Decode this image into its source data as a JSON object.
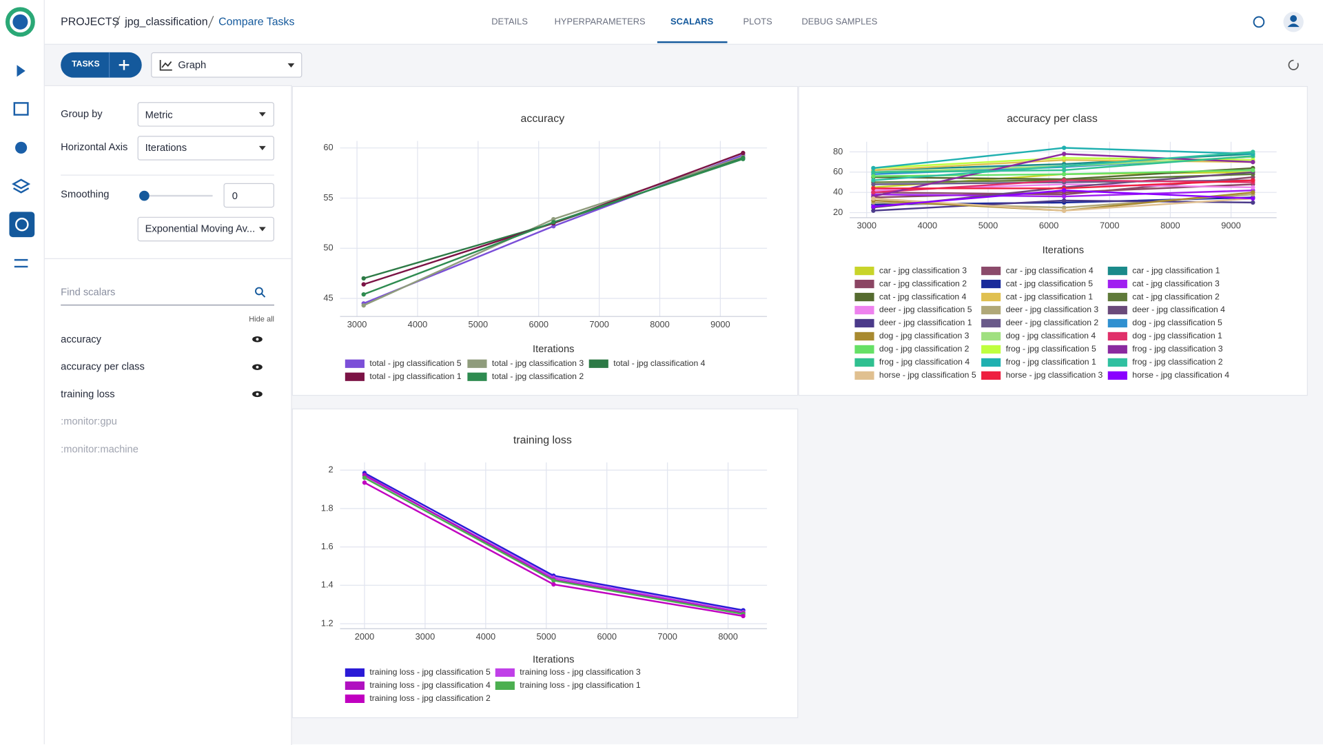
{
  "header": {
    "breadcrumb": [
      "PROJECTS",
      "jpg_classification",
      "Compare Tasks"
    ],
    "tabs": [
      "DETAILS",
      "HYPERPARAMETERS",
      "SCALARS",
      "PLOTS",
      "DEBUG SAMPLES"
    ]
  },
  "toolbar": {
    "tasks_button": "TASKS",
    "view_select": "Graph"
  },
  "sidebar": {
    "group_by": {
      "label": "Group by",
      "value": "Metric"
    },
    "horizontal_axis": {
      "label": "Horizontal Axis",
      "value": "Iterations"
    },
    "smoothing": {
      "label": "Smoothing",
      "value": 0,
      "method": "Exponential Moving Av..."
    },
    "search_placeholder": "Find scalars",
    "hide_all": "Hide all",
    "scalars": [
      "accuracy",
      "accuracy per class",
      "training loss",
      ":monitor:gpu",
      ":monitor:machine"
    ]
  },
  "charts": [
    {
      "type": "line",
      "title": "accuracy",
      "x_label": "Iterations",
      "grid": true,
      "x": [
        3110,
        6245,
        9375
      ],
      "xlim": [
        2720,
        9770
      ],
      "xticks": [
        3000,
        4000,
        5000,
        6000,
        7000,
        8000,
        9000
      ],
      "ylim": [
        43.2,
        60.7
      ],
      "yticks": [
        45,
        50,
        55,
        60
      ],
      "series": [
        {
          "name": "total - jpg classification 5",
          "color": "#7b4fd8",
          "values": [
            44.5,
            52.2,
            59.3
          ]
        },
        {
          "name": "total - jpg classification 3",
          "color": "#8f9c7c",
          "values": [
            44.3,
            52.9,
            59.1
          ]
        },
        {
          "name": "total - jpg classification 4",
          "color": "#2d7a46",
          "values": [
            47.0,
            52.5,
            59.0
          ]
        },
        {
          "name": "total - jpg classification 1",
          "color": "#7b1345",
          "values": [
            46.4,
            52.5,
            59.5
          ]
        },
        {
          "name": "total - jpg classification 2",
          "color": "#2e8b50",
          "values": [
            45.4,
            52.6,
            58.9
          ]
        }
      ]
    },
    {
      "type": "line",
      "title": "accuracy per class",
      "x_label": "Iterations",
      "grid": true,
      "x": [
        3110,
        6250,
        9360
      ],
      "xlim": [
        2720,
        9750
      ],
      "xticks": [
        3000,
        4000,
        5000,
        6000,
        7000,
        8000,
        9000
      ],
      "ylim": [
        15,
        90
      ],
      "yticks": [
        20,
        40,
        60,
        80
      ],
      "series": [
        {
          "name": "car - jpg classification 3",
          "color": "#c8d42a",
          "values": [
            45,
            58,
            60
          ]
        },
        {
          "name": "car - jpg classification 4",
          "color": "#8b4a6a",
          "values": [
            40,
            38,
            55
          ]
        },
        {
          "name": "car - jpg classification 1",
          "color": "#1a8a8a",
          "values": [
            62,
            68,
            78
          ]
        },
        {
          "name": "car - jpg classification 2",
          "color": "#8b4563",
          "values": [
            35,
            40,
            48
          ]
        },
        {
          "name": "cat - jpg classification 5",
          "color": "#1a2a9a",
          "values": [
            28,
            30,
            35
          ]
        },
        {
          "name": "cat - jpg classification 3",
          "color": "#a020f0",
          "values": [
            38,
            36,
            42
          ]
        },
        {
          "name": "cat - jpg classification 4",
          "color": "#556b2f",
          "values": [
            55,
            53,
            64
          ]
        },
        {
          "name": "cat - jpg classification 1",
          "color": "#e0c050",
          "values": [
            62,
            72,
            70
          ]
        },
        {
          "name": "cat - jpg classification 2",
          "color": "#5f7a3a",
          "values": [
            50,
            52,
            58
          ]
        },
        {
          "name": "deer - jpg classification 5",
          "color": "#ee82ee",
          "values": [
            42,
            48,
            45
          ]
        },
        {
          "name": "deer - jpg classification 3",
          "color": "#b0a878",
          "values": [
            30,
            25,
            38
          ]
        },
        {
          "name": "deer - jpg classification 4",
          "color": "#6a4a7a",
          "values": [
            25,
            45,
            60
          ]
        },
        {
          "name": "deer - jpg classification 1",
          "color": "#4b3a8a",
          "values": [
            22,
            32,
            30
          ]
        },
        {
          "name": "deer - jpg classification 2",
          "color": "#6a5a8a",
          "values": [
            48,
            50,
            52
          ]
        },
        {
          "name": "dog - jpg classification 5",
          "color": "#3090d0",
          "values": [
            58,
            65,
            75
          ]
        },
        {
          "name": "dog - jpg classification 3",
          "color": "#a88a30",
          "values": [
            32,
            22,
            40
          ]
        },
        {
          "name": "dog - jpg classification 4",
          "color": "#a0e080",
          "values": [
            60,
            66,
            75
          ]
        },
        {
          "name": "dog - jpg classification 1",
          "color": "#e0306a",
          "values": [
            40,
            52,
            50
          ]
        },
        {
          "name": "dog - jpg classification 2",
          "color": "#66e066",
          "values": [
            56,
            58,
            62
          ]
        },
        {
          "name": "frog - jpg classification 5",
          "color": "#bfff3f",
          "values": [
            64,
            74,
            72
          ]
        },
        {
          "name": "frog - jpg classification 3",
          "color": "#8a2aa0",
          "values": [
            36,
            78,
            70
          ]
        },
        {
          "name": "frog - jpg classification 4",
          "color": "#30c090",
          "values": [
            60,
            62,
            76
          ]
        },
        {
          "name": "frog - jpg classification 1",
          "color": "#20b0b0",
          "values": [
            64,
            84,
            78
          ]
        },
        {
          "name": "frog - jpg classification 2",
          "color": "#30c0a0",
          "values": [
            52,
            66,
            80
          ]
        },
        {
          "name": "horse - jpg classification 5",
          "color": "#e0c090",
          "values": [
            34,
            22,
            34
          ]
        },
        {
          "name": "horse - jpg classification 3",
          "color": "#ee2040",
          "values": [
            44,
            44,
            52
          ]
        },
        {
          "name": "horse - jpg classification 4",
          "color": "#8a00ff",
          "values": [
            26,
            42,
            34
          ]
        }
      ]
    },
    {
      "type": "line",
      "title": "training loss",
      "x_label": "Iterations",
      "grid": true,
      "x": [
        2000,
        5120,
        8250
      ],
      "xlim": [
        1596,
        8642
      ],
      "xticks": [
        2000,
        3000,
        4000,
        5000,
        6000,
        7000,
        8000
      ],
      "ylim": [
        1.174,
        2.04
      ],
      "yticks": [
        1.2,
        1.4,
        1.6,
        1.8,
        2
      ],
      "series": [
        {
          "name": "training loss - jpg classification 5",
          "color": "#2a1ad6",
          "values": [
            1.985,
            1.45,
            1.27
          ]
        },
        {
          "name": "training loss - jpg classification 3",
          "color": "#c040e8",
          "values": [
            1.97,
            1.44,
            1.26
          ]
        },
        {
          "name": "training loss - jpg classification 4",
          "color": "#b010c0",
          "values": [
            1.975,
            1.43,
            1.255
          ]
        },
        {
          "name": "training loss - jpg classification 1",
          "color": "#4caf50",
          "values": [
            1.96,
            1.425,
            1.25
          ]
        },
        {
          "name": "training loss - jpg classification 2",
          "color": "#c000c0",
          "values": [
            1.935,
            1.405,
            1.24
          ]
        }
      ]
    }
  ]
}
